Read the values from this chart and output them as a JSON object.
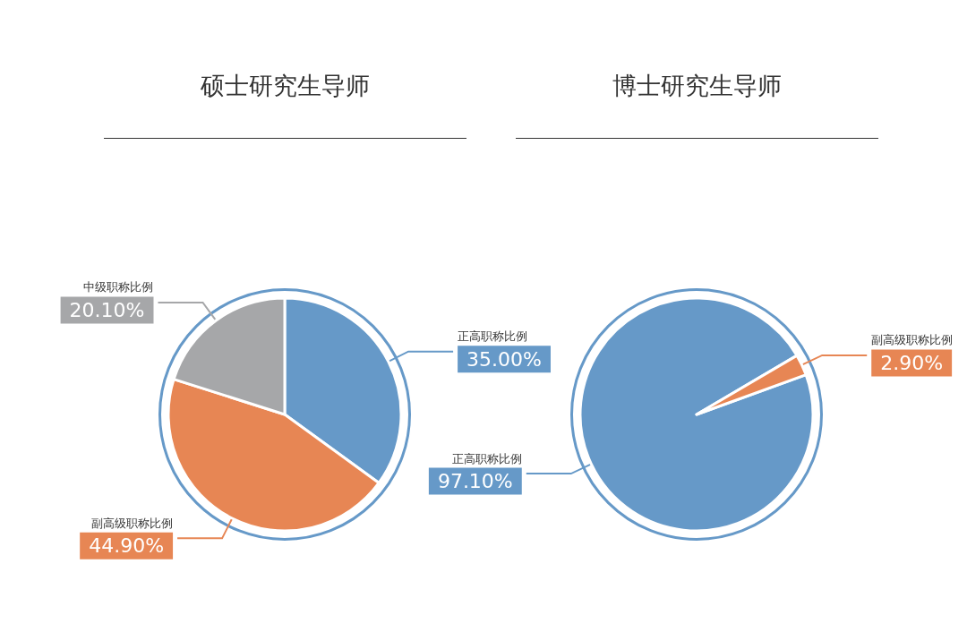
{
  "chart_data": [
    {
      "type": "pie",
      "title": "硕士研究生导师",
      "categories": [
        "正高职称比例",
        "副高级职称比例",
        "中级职称比例"
      ],
      "values": [
        35.0,
        44.9,
        20.1
      ],
      "value_labels": [
        "35.00%",
        "44.90%",
        "20.10%"
      ],
      "colors": [
        "#6699c8",
        "#e78654",
        "#a6a7a9"
      ],
      "legend": false
    },
    {
      "type": "pie",
      "title": "博士研究生导师",
      "categories": [
        "正高职称比例",
        "副高级职称比例"
      ],
      "values": [
        97.1,
        2.9
      ],
      "value_labels": [
        "97.10%",
        "2.90%"
      ],
      "colors": [
        "#6699c8",
        "#e78654"
      ],
      "legend": false
    }
  ]
}
